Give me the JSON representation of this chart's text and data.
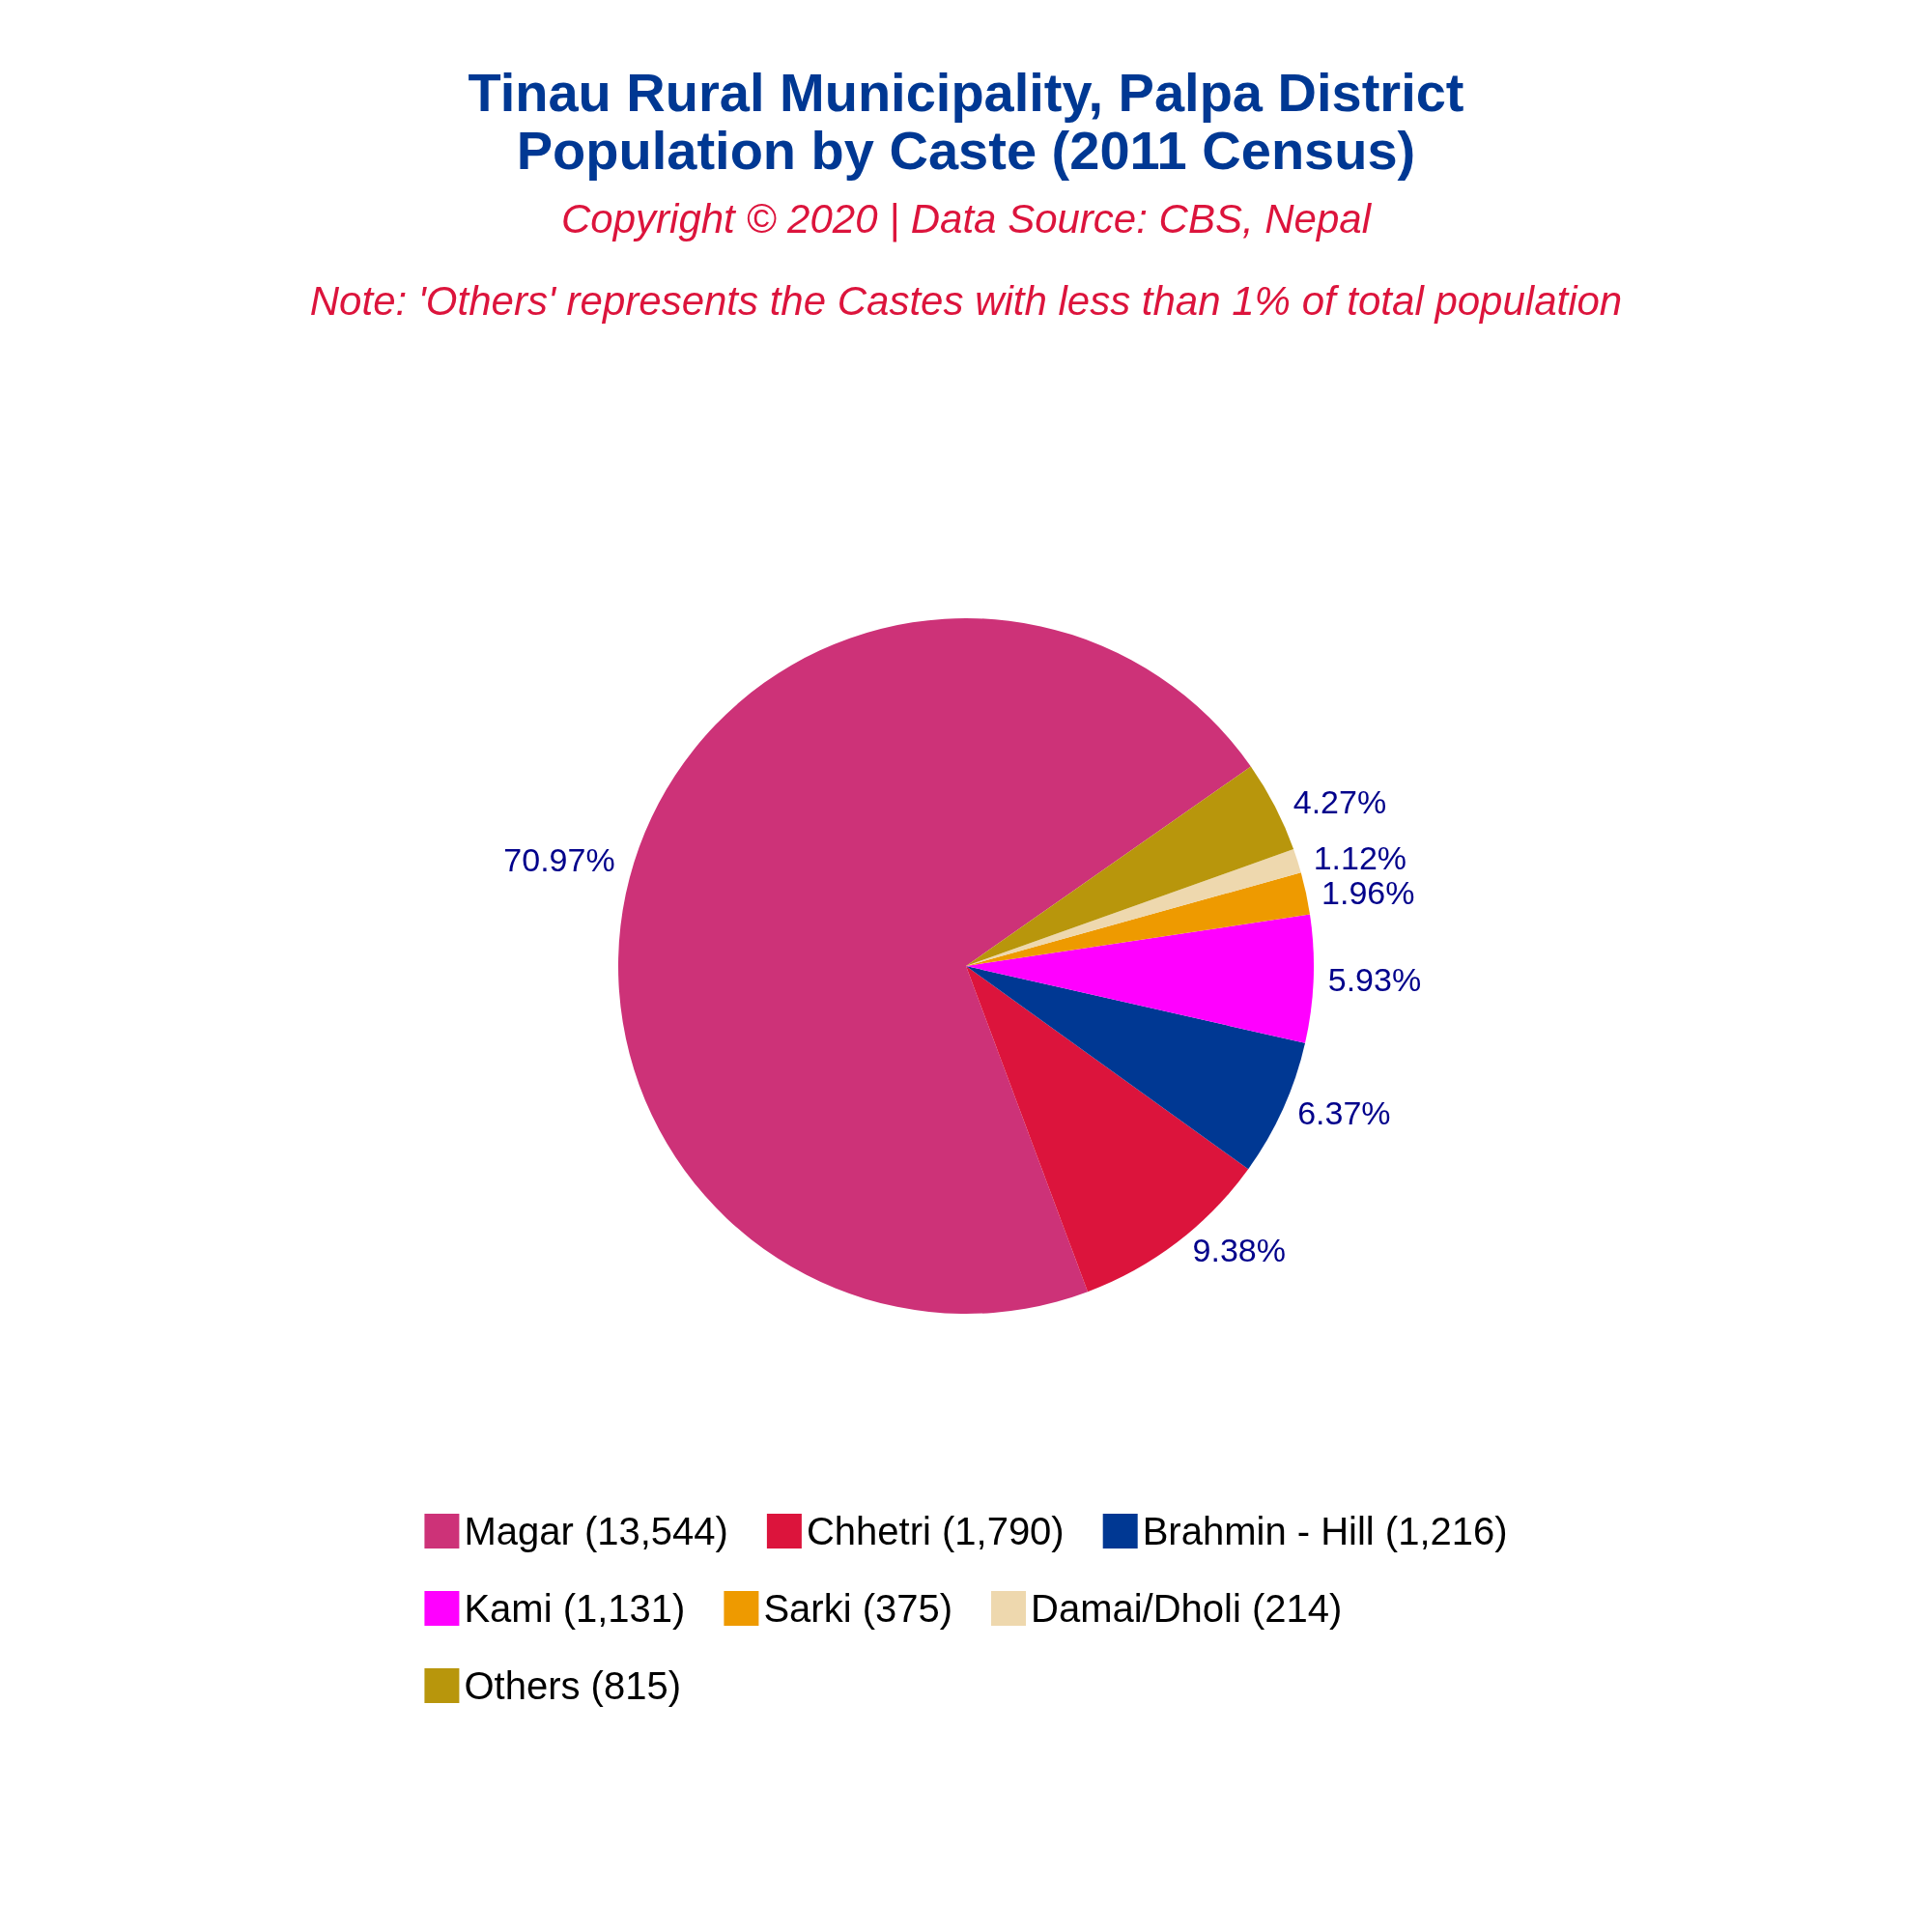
{
  "chart_data": {
    "type": "pie",
    "title": "Tinau Rural Municipality, Palpa District\nPopulation by Caste (2011 Census)",
    "subtitle": "Copyright © 2020 | Data Source: CBS, Nepal",
    "annotations": [
      "Note: 'Others' represents the Castes with less than 1% of total population"
    ],
    "categories": [
      "Magar (13,544)",
      "Chhetri (1,790)",
      "Brahmin - Hill (1,216)",
      "Kami (1,131)",
      "Sarki (375)",
      "Damai/Dholi (214)",
      "Others (815)"
    ],
    "values": [
      70.97,
      9.38,
      6.37,
      5.93,
      1.96,
      1.12,
      4.27
    ],
    "value_labels": [
      "70.97%",
      "9.38%",
      "6.37%",
      "5.93%",
      "1.96%",
      "1.12%",
      "4.27%"
    ],
    "colors": [
      "#cd3278",
      "#dc143c",
      "#003893",
      "#ff00ff",
      "#ee9a00",
      "#eed8ae",
      "#b8960c"
    ],
    "legend": "bottom"
  }
}
